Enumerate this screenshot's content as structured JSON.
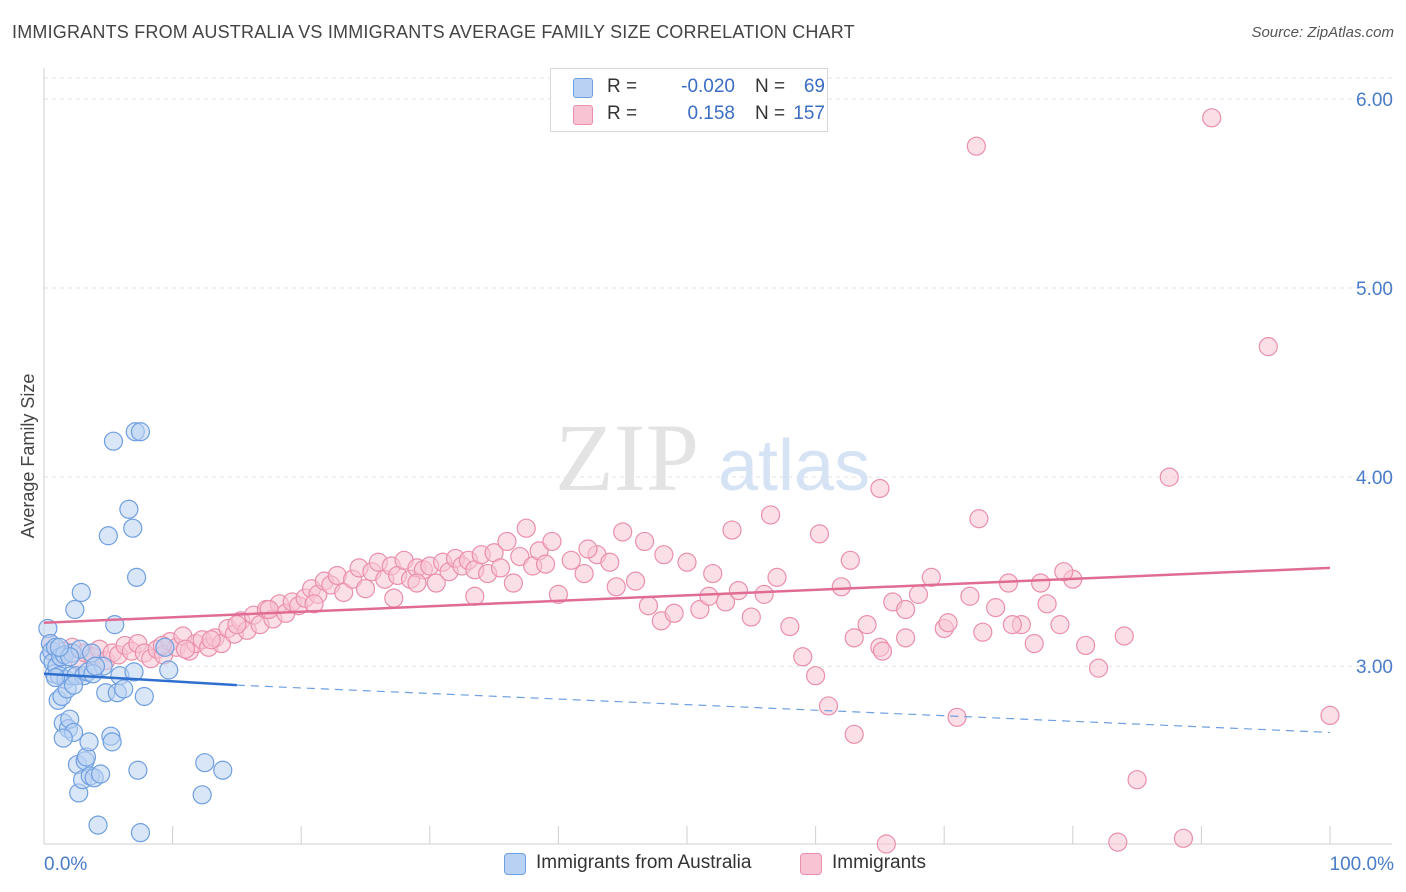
{
  "title": "IMMIGRANTS FROM AUSTRALIA VS IMMIGRANTS AVERAGE FAMILY SIZE CORRELATION CHART",
  "source": "Source: ZipAtlas.com",
  "watermark": {
    "zip": "ZIP",
    "atlas": "atlas"
  },
  "legend": {
    "r_label": "R =",
    "n_label": "N =",
    "rows": [
      {
        "r": "-0.020",
        "n": "69",
        "fill": "#b9d1f3",
        "stroke": "#6f9fe0"
      },
      {
        "r": "0.158",
        "n": "157",
        "fill": "#f8c4d4",
        "stroke": "#ea8fac"
      }
    ]
  },
  "bottom_legend": [
    {
      "label": "Immigrants from Australia",
      "fill": "#b9d1f3",
      "stroke": "#6f9fe0"
    },
    {
      "label": "Immigrants",
      "fill": "#f8c4d4",
      "stroke": "#ea8fac"
    }
  ],
  "chart_data": {
    "type": "scatter",
    "title": "IMMIGRANTS FROM AUSTRALIA VS IMMIGRANTS AVERAGE FAMILY SIZE CORRELATION CHART",
    "xlabel": "",
    "ylabel": "Average Family Size",
    "xlim": [
      0,
      100
    ],
    "ylim": [
      2.06,
      6.1
    ],
    "x_tick_labels": [
      {
        "value": 0,
        "label": "0.0%"
      },
      {
        "value": 100,
        "label": "100.0%"
      }
    ],
    "y_ticks": [
      3.0,
      4.0,
      5.0,
      6.0
    ],
    "y_tick_labels": [
      "3.00",
      "4.00",
      "5.00",
      "6.00"
    ],
    "grid": true,
    "legend_position": "top-center",
    "colors": {
      "blue": "#4a7cc9",
      "pink": "#e06c93"
    },
    "series": [
      {
        "name": "Immigrants from Australia",
        "color": "#6f9fe0",
        "fill": "#b9d1f3",
        "points": [
          [
            0.3,
            3.2
          ],
          [
            0.4,
            3.05
          ],
          [
            0.5,
            3.12
          ],
          [
            0.6,
            3.08
          ],
          [
            0.7,
            3.02
          ],
          [
            0.8,
            2.96
          ],
          [
            0.9,
            3.1
          ],
          [
            1.0,
            3.0
          ],
          [
            1.1,
            2.82
          ],
          [
            1.2,
            2.95
          ],
          [
            1.3,
            3.05
          ],
          [
            1.4,
            2.84
          ],
          [
            1.5,
            2.7
          ],
          [
            1.6,
            3.06
          ],
          [
            1.7,
            2.93
          ],
          [
            1.8,
            2.88
          ],
          [
            1.9,
            2.67
          ],
          [
            2.0,
            2.72
          ],
          [
            2.1,
            2.95
          ],
          [
            2.2,
            3.07
          ],
          [
            2.3,
            2.65
          ],
          [
            2.4,
            3.3
          ],
          [
            2.5,
            2.95
          ],
          [
            2.6,
            2.48
          ],
          [
            2.7,
            2.33
          ],
          [
            2.8,
            3.09
          ],
          [
            2.9,
            3.39
          ],
          [
            3.0,
            2.4
          ],
          [
            3.1,
            2.95
          ],
          [
            3.2,
            2.5
          ],
          [
            3.3,
            2.52
          ],
          [
            3.4,
            2.97
          ],
          [
            3.5,
            2.6
          ],
          [
            3.6,
            2.42
          ],
          [
            3.7,
            3.07
          ],
          [
            3.9,
            2.41
          ],
          [
            4.2,
            2.16
          ],
          [
            4.4,
            2.43
          ],
          [
            4.6,
            3.0
          ],
          [
            4.8,
            2.86
          ],
          [
            5.0,
            3.69
          ],
          [
            5.2,
            2.63
          ],
          [
            5.3,
            2.6
          ],
          [
            5.4,
            4.19
          ],
          [
            5.5,
            3.22
          ],
          [
            5.7,
            2.86
          ],
          [
            5.9,
            2.95
          ],
          [
            6.2,
            2.88
          ],
          [
            6.6,
            3.83
          ],
          [
            6.9,
            3.73
          ],
          [
            7.2,
            3.47
          ],
          [
            7.3,
            2.45
          ],
          [
            7.5,
            2.12
          ],
          [
            7.0,
            2.97
          ],
          [
            7.8,
            2.84
          ],
          [
            7.1,
            4.24
          ],
          [
            7.5,
            4.24
          ],
          [
            9.4,
            3.1
          ],
          [
            9.7,
            2.98
          ],
          [
            12.5,
            2.49
          ],
          [
            12.3,
            2.32
          ],
          [
            13.9,
            2.45
          ],
          [
            0.9,
            2.94
          ],
          [
            1.5,
            2.62
          ],
          [
            2.0,
            3.05
          ],
          [
            3.8,
            2.96
          ],
          [
            2.3,
            2.9
          ],
          [
            1.2,
            3.1
          ],
          [
            4.0,
            3.0
          ]
        ]
      },
      {
        "name": "Immigrants",
        "color": "#ea8fac",
        "fill": "#f8c4d4",
        "points": [
          [
            0.5,
            3.12
          ],
          [
            1.0,
            3.06
          ],
          [
            1.6,
            3.08
          ],
          [
            2.2,
            3.1
          ],
          [
            2.8,
            3.02
          ],
          [
            3.2,
            3.07
          ],
          [
            3.8,
            3.05
          ],
          [
            4.3,
            3.09
          ],
          [
            4.8,
            3.03
          ],
          [
            5.3,
            3.07
          ],
          [
            5.8,
            3.06
          ],
          [
            6.3,
            3.11
          ],
          [
            6.8,
            3.08
          ],
          [
            7.3,
            3.12
          ],
          [
            7.8,
            3.07
          ],
          [
            8.3,
            3.04
          ],
          [
            8.8,
            3.09
          ],
          [
            9.3,
            3.06
          ],
          [
            9.8,
            3.13
          ],
          [
            10.3,
            3.1
          ],
          [
            10.8,
            3.16
          ],
          [
            11.3,
            3.08
          ],
          [
            11.8,
            3.12
          ],
          [
            12.3,
            3.14
          ],
          [
            12.8,
            3.1
          ],
          [
            13.3,
            3.15
          ],
          [
            13.8,
            3.12
          ],
          [
            14.3,
            3.2
          ],
          [
            14.8,
            3.17
          ],
          [
            15.3,
            3.24
          ],
          [
            15.8,
            3.19
          ],
          [
            16.3,
            3.27
          ],
          [
            16.8,
            3.22
          ],
          [
            17.3,
            3.3
          ],
          [
            17.8,
            3.25
          ],
          [
            18.3,
            3.33
          ],
          [
            18.8,
            3.28
          ],
          [
            19.3,
            3.34
          ],
          [
            19.8,
            3.32
          ],
          [
            20.3,
            3.36
          ],
          [
            20.8,
            3.41
          ],
          [
            21.3,
            3.38
          ],
          [
            21.8,
            3.45
          ],
          [
            22.3,
            3.43
          ],
          [
            22.8,
            3.48
          ],
          [
            23.3,
            3.39
          ],
          [
            24.0,
            3.46
          ],
          [
            24.5,
            3.52
          ],
          [
            25.0,
            3.41
          ],
          [
            25.5,
            3.5
          ],
          [
            26.0,
            3.55
          ],
          [
            26.5,
            3.46
          ],
          [
            27.0,
            3.53
          ],
          [
            27.5,
            3.48
          ],
          [
            28.0,
            3.56
          ],
          [
            28.5,
            3.46
          ],
          [
            29.0,
            3.52
          ],
          [
            29.5,
            3.51
          ],
          [
            30.0,
            3.53
          ],
          [
            30.5,
            3.44
          ],
          [
            31.0,
            3.55
          ],
          [
            31.5,
            3.5
          ],
          [
            32.0,
            3.57
          ],
          [
            32.5,
            3.53
          ],
          [
            33.0,
            3.56
          ],
          [
            33.5,
            3.51
          ],
          [
            34.0,
            3.59
          ],
          [
            34.5,
            3.49
          ],
          [
            35.0,
            3.6
          ],
          [
            35.5,
            3.52
          ],
          [
            36.0,
            3.66
          ],
          [
            36.5,
            3.44
          ],
          [
            37.0,
            3.58
          ],
          [
            37.5,
            3.73
          ],
          [
            38.0,
            3.53
          ],
          [
            38.5,
            3.61
          ],
          [
            39.0,
            3.54
          ],
          [
            39.5,
            3.66
          ],
          [
            40.0,
            3.38
          ],
          [
            41.0,
            3.56
          ],
          [
            42.0,
            3.49
          ],
          [
            43.0,
            3.59
          ],
          [
            44.0,
            3.55
          ],
          [
            45.0,
            3.71
          ],
          [
            46.0,
            3.45
          ],
          [
            47.0,
            3.32
          ],
          [
            48.0,
            3.24
          ],
          [
            49.0,
            3.28
          ],
          [
            50.0,
            3.55
          ],
          [
            51.0,
            3.3
          ],
          [
            52.0,
            3.49
          ],
          [
            53.0,
            3.34
          ],
          [
            54.0,
            3.4
          ],
          [
            55.0,
            3.26
          ],
          [
            56.0,
            3.38
          ],
          [
            57.0,
            3.47
          ],
          [
            58.0,
            3.21
          ],
          [
            59.0,
            3.05
          ],
          [
            60.0,
            2.95
          ],
          [
            61.0,
            2.79
          ],
          [
            62.0,
            3.42
          ],
          [
            63.0,
            3.15
          ],
          [
            64.0,
            3.22
          ],
          [
            65.0,
            3.1
          ],
          [
            66.0,
            3.34
          ],
          [
            67.0,
            3.15
          ],
          [
            68.0,
            3.38
          ],
          [
            69.0,
            3.47
          ],
          [
            70.0,
            3.2
          ],
          [
            71.0,
            2.73
          ],
          [
            72.0,
            3.37
          ],
          [
            73.0,
            3.18
          ],
          [
            74.0,
            3.31
          ],
          [
            75.0,
            3.44
          ],
          [
            76.0,
            3.22
          ],
          [
            77.0,
            3.12
          ],
          [
            78.0,
            3.33
          ],
          [
            79.0,
            3.22
          ],
          [
            80.0,
            3.46
          ],
          [
            81.0,
            3.11
          ],
          [
            82.0,
            2.99
          ],
          [
            84.0,
            3.16
          ],
          [
            85.0,
            2.4
          ],
          [
            33.5,
            3.37
          ],
          [
            42.3,
            3.62
          ],
          [
            44.5,
            3.42
          ],
          [
            46.7,
            3.66
          ],
          [
            48.2,
            3.59
          ],
          [
            51.7,
            3.37
          ],
          [
            53.5,
            3.72
          ],
          [
            56.5,
            3.8
          ],
          [
            60.3,
            3.7
          ],
          [
            62.7,
            3.56
          ],
          [
            65.2,
            3.08
          ],
          [
            67.0,
            3.3
          ],
          [
            70.3,
            3.23
          ],
          [
            72.7,
            3.78
          ],
          [
            75.3,
            3.22
          ],
          [
            77.5,
            3.44
          ],
          [
            79.3,
            3.5
          ],
          [
            29.0,
            3.44
          ],
          [
            27.2,
            3.36
          ],
          [
            21.0,
            3.33
          ],
          [
            17.5,
            3.3
          ],
          [
            15.0,
            3.22
          ],
          [
            13.0,
            3.14
          ],
          [
            11.0,
            3.09
          ],
          [
            9.2,
            3.11
          ],
          [
            63.0,
            2.64
          ],
          [
            65.0,
            3.94
          ],
          [
            72.5,
            5.75
          ],
          [
            90.8,
            5.9
          ],
          [
            95.2,
            4.69
          ],
          [
            87.5,
            4.0
          ],
          [
            100.0,
            2.74
          ],
          [
            65.5,
            2.06
          ],
          [
            83.5,
            2.07
          ],
          [
            88.6,
            2.09
          ]
        ]
      }
    ],
    "trend_lines": [
      {
        "series": "Immigrants from Australia",
        "x": [
          0,
          15
        ],
        "y": [
          2.96,
          2.9
        ],
        "dashed_extension_to": [
          100,
          2.65
        ]
      },
      {
        "series": "Immigrants",
        "x": [
          0,
          100
        ],
        "y": [
          3.23,
          3.52
        ]
      }
    ]
  }
}
